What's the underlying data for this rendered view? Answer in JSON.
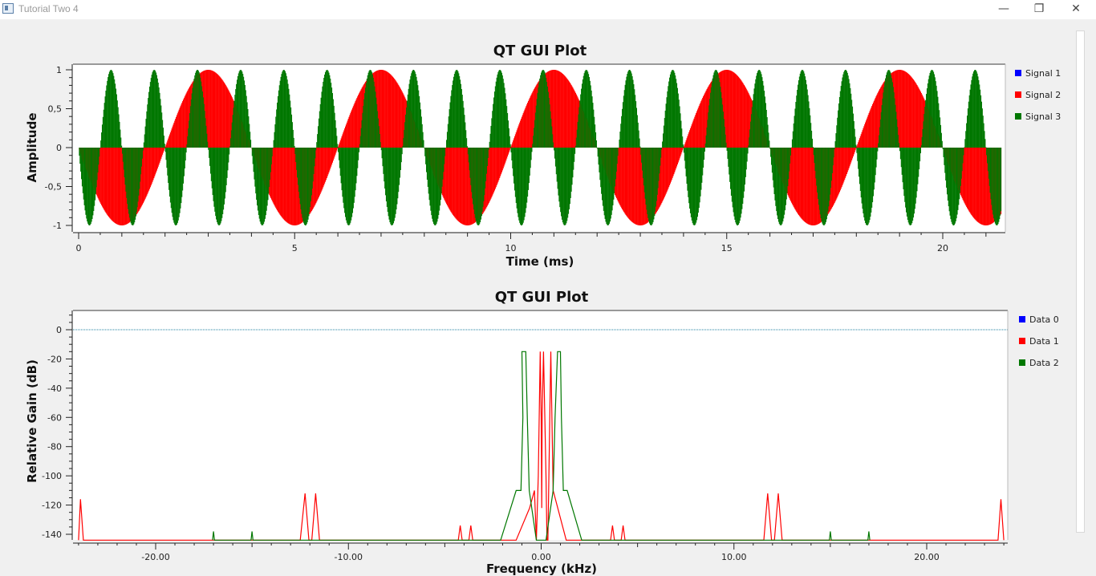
{
  "window": {
    "title": "Tutorial Two 4",
    "minimize_glyph": "—",
    "restore_glyph": "❐",
    "close_glyph": "✕"
  },
  "chart_data": [
    {
      "type": "line",
      "title": "QT GUI Plot",
      "xlabel": "Time (ms)",
      "ylabel": "Amplitude",
      "xlim": [
        -0.1,
        21.3
      ],
      "ylim": [
        -1.05,
        1.05
      ],
      "x_ticks": [
        0,
        5,
        10,
        15,
        20
      ],
      "x_tick_labels": [
        "0",
        "5",
        "10",
        "15",
        "20"
      ],
      "y_ticks": [
        1,
        0.5,
        0,
        -0.5,
        -1
      ],
      "y_tick_labels": [
        "1",
        "0,5",
        "0",
        "-0,5",
        "-1"
      ],
      "style": "stems",
      "series": [
        {
          "name": "Signal 1",
          "color": "#0000ff",
          "frequency_khz": 0.25,
          "amplitude": 1,
          "visible": false
        },
        {
          "name": "Signal 2",
          "color": "#ff0000",
          "frequency_khz": 0.25,
          "amplitude": 1,
          "phase": "-sin"
        },
        {
          "name": "Signal 3",
          "color": "#007700",
          "frequency_khz": 1.0,
          "amplitude": 1,
          "phase": "-sin"
        }
      ],
      "legend_position": "right",
      "grid": false
    },
    {
      "type": "line",
      "title": "QT GUI Plot",
      "xlabel": "Frequency (kHz)",
      "ylabel": "Relative Gain (dB)",
      "xlim": [
        -24.0,
        24.0
      ],
      "ylim": [
        -144,
        10
      ],
      "x_ticks": [
        -20,
        -10,
        0,
        10,
        20
      ],
      "x_tick_labels": [
        "-20.00",
        "-10.00",
        "0.00",
        "10.00",
        "20.00"
      ],
      "y_ticks": [
        0,
        -20,
        -40,
        -60,
        -80,
        -100,
        -120,
        -140
      ],
      "y_tick_labels": [
        "0",
        "-20",
        "-40",
        "-60",
        "-80",
        "-100",
        "-120",
        "-140"
      ],
      "series": [
        {
          "name": "Data 0",
          "color": "#0000ff",
          "points": []
        },
        {
          "name": "Data 1",
          "color": "#ff0000",
          "points": [
            [
              -24.0,
              -144
            ],
            [
              -23.9,
              -116
            ],
            [
              -23.75,
              -144
            ],
            [
              -12.5,
              -144
            ],
            [
              -12.25,
              -112
            ],
            [
              -12.05,
              -144
            ],
            [
              -11.9,
              -144
            ],
            [
              -11.7,
              -112
            ],
            [
              -11.5,
              -144
            ],
            [
              -4.3,
              -144
            ],
            [
              -4.2,
              -134
            ],
            [
              -4.1,
              -144
            ],
            [
              -3.75,
              -144
            ],
            [
              -3.65,
              -134
            ],
            [
              -3.55,
              -144
            ],
            [
              -1.3,
              -144
            ],
            [
              -0.6,
              -122
            ],
            [
              -0.35,
              -110
            ],
            [
              -0.25,
              -144
            ],
            [
              -0.15,
              -100
            ],
            [
              -0.05,
              -15
            ],
            [
              0.0,
              -60
            ],
            [
              0.03,
              -122
            ],
            [
              0.05,
              -60
            ],
            [
              0.12,
              -15
            ],
            [
              0.25,
              -100
            ],
            [
              0.3,
              -144
            ],
            [
              0.35,
              -144
            ],
            [
              0.4,
              -100
            ],
            [
              0.5,
              -15
            ],
            [
              0.62,
              -110
            ],
            [
              1.3,
              -144
            ],
            [
              3.6,
              -144
            ],
            [
              3.7,
              -134
            ],
            [
              3.8,
              -144
            ],
            [
              4.15,
              -144
            ],
            [
              4.25,
              -134
            ],
            [
              4.35,
              -144
            ],
            [
              11.55,
              -144
            ],
            [
              11.75,
              -112
            ],
            [
              11.95,
              -144
            ],
            [
              12.1,
              -144
            ],
            [
              12.3,
              -112
            ],
            [
              12.5,
              -144
            ],
            [
              23.7,
              -144
            ],
            [
              23.85,
              -116
            ],
            [
              24.0,
              -144
            ]
          ]
        },
        {
          "name": "Data 2",
          "color": "#007700",
          "points": [
            [
              -17.05,
              -144
            ],
            [
              -17.0,
              -138
            ],
            [
              -16.95,
              -144
            ],
            [
              -15.05,
              -144
            ],
            [
              -15.0,
              -138
            ],
            [
              -14.95,
              -144
            ],
            [
              -2.1,
              -144
            ],
            [
              -1.3,
              -110
            ],
            [
              -1.05,
              -110
            ],
            [
              -0.95,
              -60
            ],
            [
              -1.0,
              -15
            ],
            [
              -0.8,
              -15
            ],
            [
              -0.72,
              -60
            ],
            [
              -0.62,
              -110
            ],
            [
              -0.25,
              -144
            ],
            [
              -0.15,
              -144
            ],
            [
              0.25,
              -144
            ],
            [
              0.62,
              -110
            ],
            [
              0.72,
              -60
            ],
            [
              0.85,
              -15
            ],
            [
              1.0,
              -15
            ],
            [
              1.05,
              -60
            ],
            [
              1.15,
              -110
            ],
            [
              1.35,
              -110
            ],
            [
              2.1,
              -144
            ],
            [
              14.95,
              -144
            ],
            [
              15.0,
              -138
            ],
            [
              15.05,
              -144
            ],
            [
              16.95,
              -144
            ],
            [
              17.0,
              -138
            ],
            [
              17.05,
              -144
            ]
          ]
        }
      ],
      "reference_line": {
        "y": 0,
        "color": "#2080a0"
      },
      "legend_position": "right",
      "grid": false
    }
  ]
}
